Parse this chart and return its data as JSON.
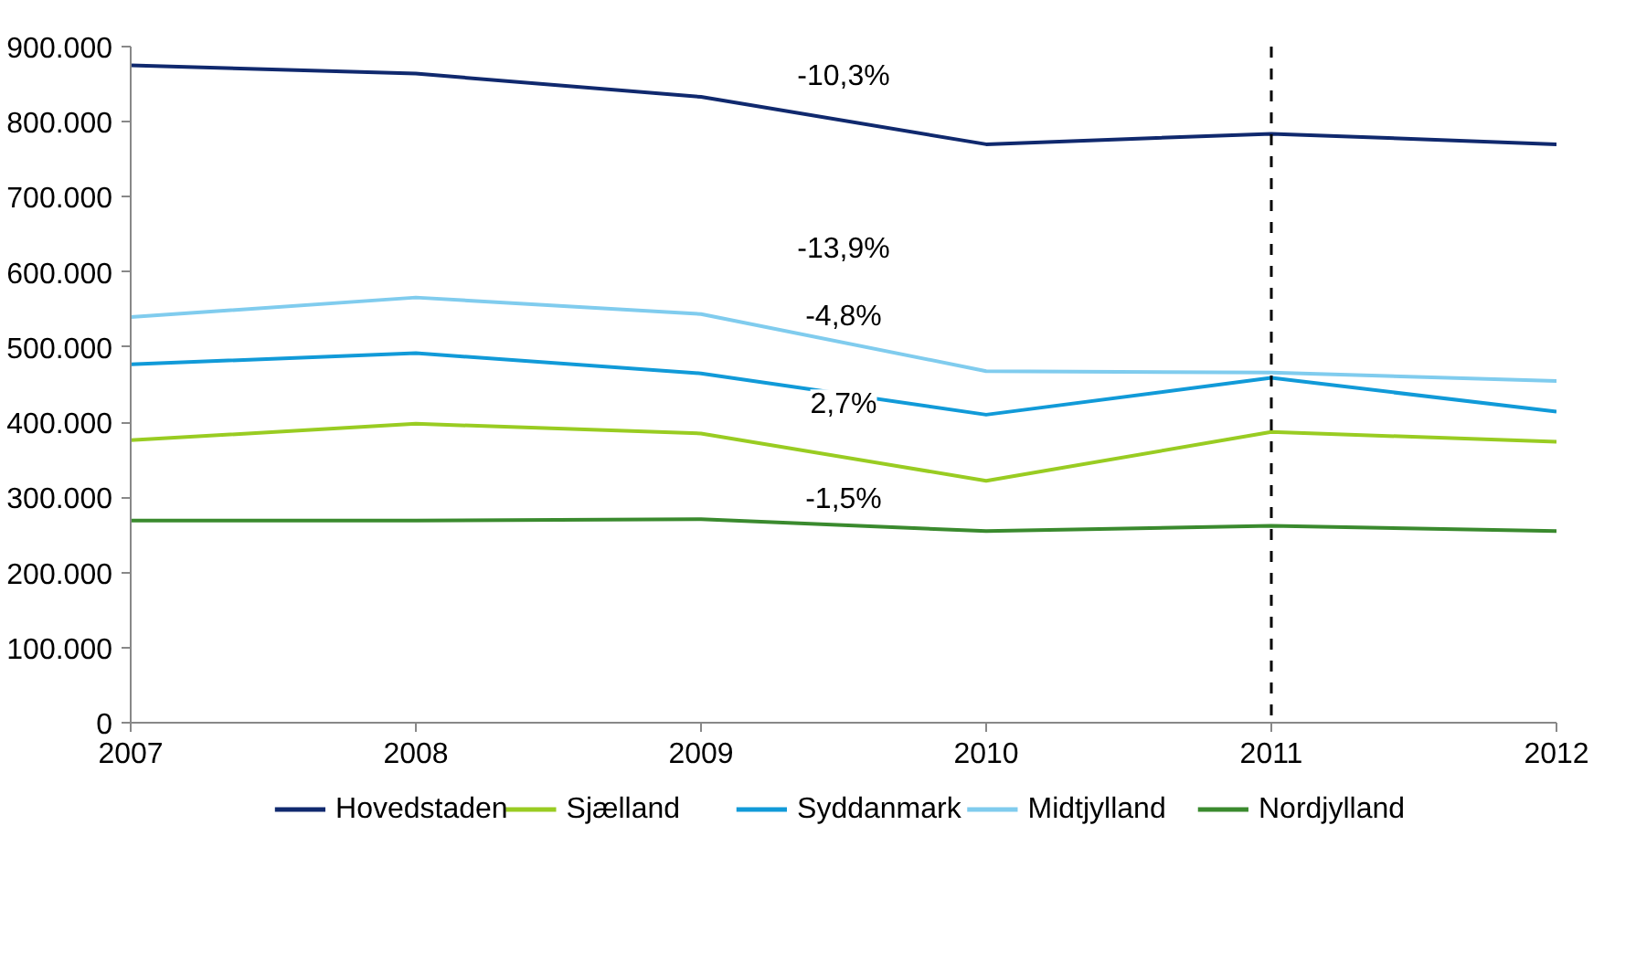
{
  "chart_data": {
    "type": "line",
    "x": [
      2007,
      2008,
      2009,
      2010,
      2011,
      2012
    ],
    "series": [
      {
        "name": "Hovedstaden",
        "color": "#10296e",
        "values": [
          875000,
          864000,
          833000,
          770000,
          784000,
          770000
        ]
      },
      {
        "name": "Sjælland",
        "color": "#99cc22",
        "values": [
          376000,
          398000,
          385000,
          322000,
          387000,
          374000
        ]
      },
      {
        "name": "Syddanmark",
        "color": "#119ad8",
        "values": [
          477000,
          492000,
          465000,
          410000,
          459000,
          414000
        ]
      },
      {
        "name": "Midtjylland",
        "color": "#80ccee",
        "values": [
          540000,
          566000,
          544000,
          468000,
          466000,
          455000
        ]
      },
      {
        "name": "Nordjylland",
        "color": "#3a8a2e",
        "values": [
          269000,
          269000,
          271000,
          255000,
          262000,
          255000
        ]
      }
    ],
    "xlim": [
      2007,
      2012
    ],
    "xticks": [
      2007,
      2008,
      2009,
      2010,
      2011,
      2012
    ],
    "ylim": [
      0,
      900000
    ],
    "yticks": [
      0,
      {
        "value": 100000,
        "label": "100.000"
      },
      {
        "value": 200000,
        "label": "200.000"
      },
      {
        "value": 300000,
        "label": "300.000"
      },
      {
        "value": 400000,
        "label": "400.000"
      },
      {
        "value": 500000,
        "label": "500.000"
      },
      {
        "value": 600000,
        "label": "600.000"
      },
      {
        "value": 700000,
        "label": "700.000"
      },
      {
        "value": 800000,
        "label": "800.000"
      },
      {
        "value": 900000,
        "label": "900.000"
      }
    ],
    "ref_lines": [
      {
        "axis": "x",
        "value": 2011,
        "label": null,
        "color": "#000000",
        "line_style": "dashed"
      }
    ],
    "annotations": [
      "-10,3%",
      "-13,9%",
      "-4,8%",
      "2,7%",
      "-1,5%"
    ],
    "grid": false,
    "legend": "bottom",
    "marker": "none",
    "line_style": "solid"
  }
}
